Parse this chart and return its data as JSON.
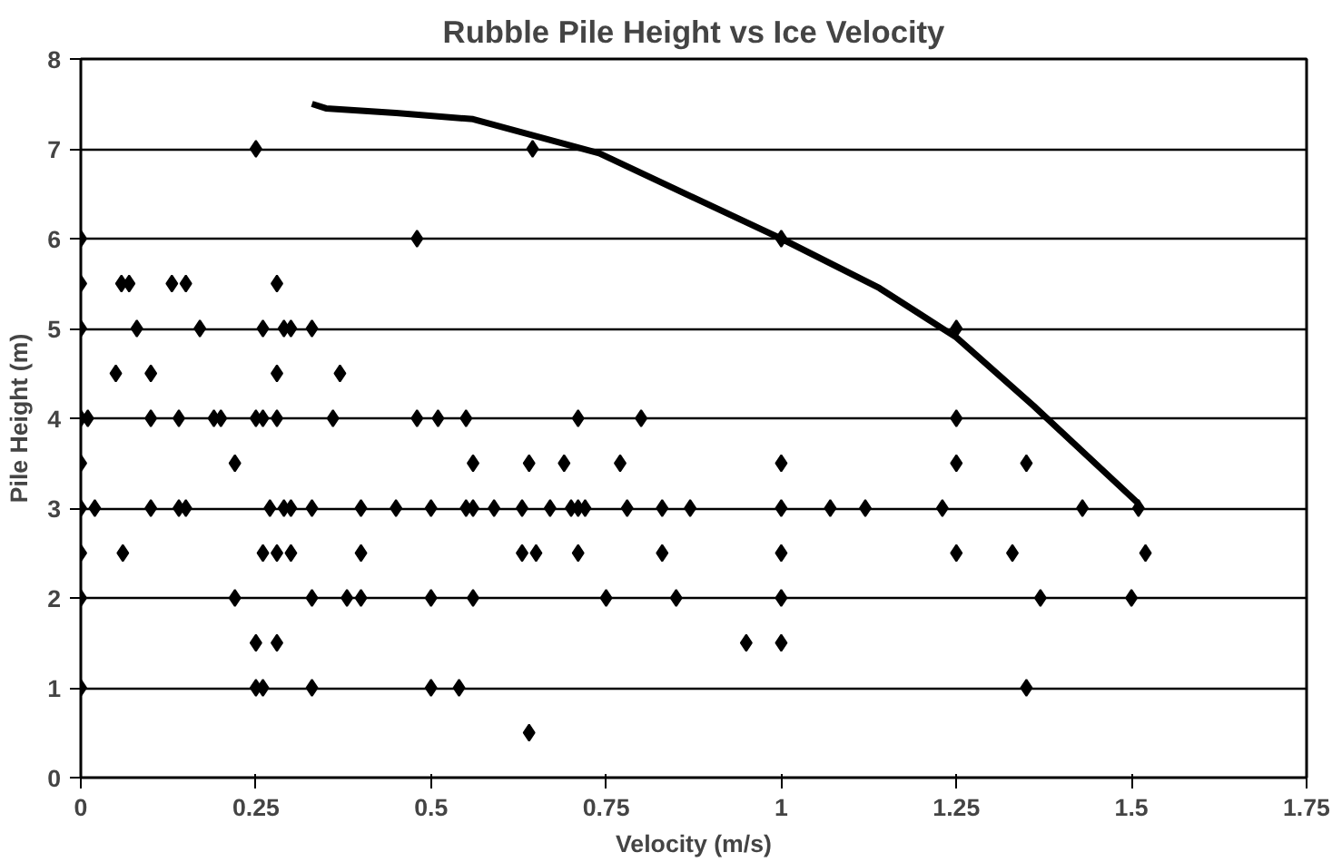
{
  "chart_data": {
    "type": "scatter",
    "title": "Rubble Pile Height vs Ice Velocity",
    "xlabel": "Velocity (m/s)",
    "ylabel": "Pile Height (m)",
    "xlim": [
      0,
      1.75
    ],
    "xticks": [
      0,
      0.25,
      0.5,
      0.75,
      1,
      1.25,
      1.5,
      1.75
    ],
    "ylim": [
      0,
      8
    ],
    "yticks": [
      0,
      1,
      2,
      3,
      4,
      5,
      6,
      7,
      8
    ],
    "grid": "y",
    "series": [
      {
        "marker": "diamond",
        "color": "#000000",
        "x": [
          0.25,
          0.645,
          1.0,
          0,
          0.48,
          0,
          0.058,
          0.069,
          0.13,
          0.15,
          0.28,
          0,
          0.08,
          0.17,
          0.26,
          0.29,
          0.3,
          0.33,
          1.25,
          0.05,
          0.1,
          0.28,
          0.37,
          0,
          0.01,
          0.1,
          0.14,
          0.19,
          0.2,
          0.25,
          0.26,
          0.28,
          0.36,
          0.48,
          0.51,
          0.55,
          0.71,
          0.8,
          1.25,
          0,
          0.22,
          0.56,
          0.64,
          0.69,
          0.77,
          1.0,
          1.25,
          1.35,
          0,
          0.02,
          0.1,
          0.14,
          0.15,
          0.27,
          0.29,
          0.3,
          0.33,
          0.4,
          0.45,
          0.5,
          0.55,
          0.56,
          0.59,
          0.63,
          0.67,
          0.7,
          0.71,
          0.72,
          0.78,
          0.83,
          0.87,
          1.0,
          1.07,
          1.12,
          1.23,
          1.43,
          1.51,
          0,
          0.06,
          0.26,
          0.28,
          0.3,
          0.4,
          0.63,
          0.65,
          0.71,
          0.83,
          1.0,
          1.25,
          1.33,
          1.52,
          0,
          0.22,
          0.33,
          0.38,
          0.4,
          0.5,
          0.56,
          0.75,
          0.85,
          1.0,
          1.37,
          1.5,
          0.25,
          0.28,
          0.95,
          1.0,
          0,
          0.25,
          0.26,
          0.33,
          0.5,
          0.54,
          1.35,
          0.64
        ],
        "values": [
          7,
          7,
          6,
          6,
          6,
          5.5,
          5.5,
          5.5,
          5.5,
          5.5,
          5.5,
          5,
          5,
          5,
          5,
          5,
          5,
          5,
          5,
          4.5,
          4.5,
          4.5,
          4.5,
          4,
          4,
          4,
          4,
          4,
          4,
          4,
          4,
          4,
          4,
          4,
          4,
          4,
          4,
          4,
          4,
          3.5,
          3.5,
          3.5,
          3.5,
          3.5,
          3.5,
          3.5,
          3.5,
          3.5,
          3,
          3,
          3,
          3,
          3,
          3,
          3,
          3,
          3,
          3,
          3,
          3,
          3,
          3,
          3,
          3,
          3,
          3,
          3,
          3,
          3,
          3,
          3,
          3,
          3,
          3,
          3,
          3,
          3,
          2.5,
          2.5,
          2.5,
          2.5,
          2.5,
          2.5,
          2.5,
          2.5,
          2.5,
          2.5,
          2.5,
          2.5,
          2.5,
          2.5,
          2,
          2,
          2,
          2,
          2,
          2,
          2,
          2,
          2,
          2,
          2,
          2,
          1.5,
          1.5,
          1.5,
          1.5,
          1,
          1,
          1,
          1,
          1,
          1,
          1,
          0.5
        ]
      },
      {
        "type": "line",
        "marker": "none",
        "color": "#000000",
        "x": [
          0.33,
          0.35,
          0.45,
          0.56,
          0.74,
          1.0,
          1.14,
          1.25,
          1.36,
          1.51
        ],
        "values": [
          7.5,
          7.45,
          7.4,
          7.33,
          6.95,
          6.0,
          5.45,
          4.9,
          4.14,
          3.05
        ]
      }
    ]
  }
}
